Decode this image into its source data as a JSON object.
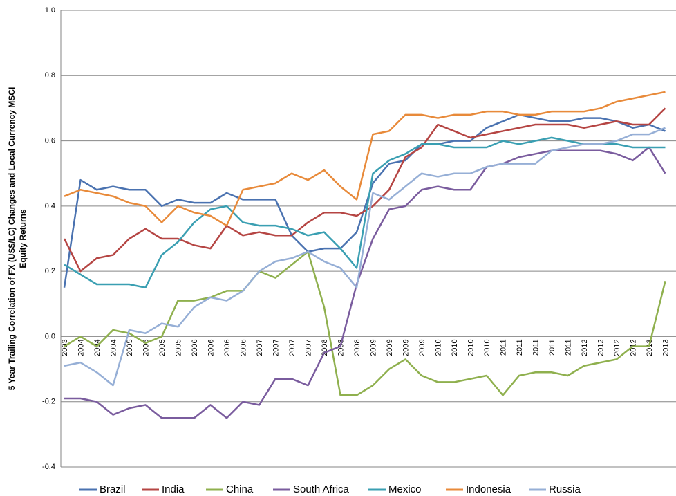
{
  "chart_data": {
    "type": "line",
    "ylabel": [
      "5 Year Trailing Correlation of FX (US$/LC) Changes and Local Currency MSCI",
      "Equity Returns"
    ],
    "categories": [
      "2003",
      "2004",
      "2004",
      "2004",
      "2005",
      "2005",
      "2005",
      "2005",
      "2006",
      "2006",
      "2006",
      "2006",
      "2007",
      "2007",
      "2007",
      "2007",
      "2008",
      "2008",
      "2008",
      "2009",
      "2009",
      "2009",
      "2009",
      "2010",
      "2010",
      "2010",
      "2010",
      "2011",
      "2011",
      "2011",
      "2011",
      "2011",
      "2012",
      "2012",
      "2012",
      "2012",
      "2013",
      "2013"
    ],
    "ylim": [
      -0.4,
      1
    ],
    "yticks": [
      {
        "value": 1,
        "label": "1.0"
      },
      0.8,
      0.6,
      0.4,
      0.2,
      {
        "value": 0,
        "label": "0.0"
      },
      -0.2,
      -0.4
    ],
    "grid": true,
    "legend": "bottom",
    "series": [
      {
        "name": "Brazil",
        "color": "#4a72b0",
        "values": [
          0.15,
          0.48,
          0.45,
          0.46,
          0.45,
          0.45,
          0.4,
          0.42,
          0.41,
          0.41,
          0.44,
          0.42,
          0.42,
          0.42,
          0.31,
          0.26,
          0.27,
          0.27,
          0.32,
          0.47,
          0.53,
          0.54,
          0.59,
          0.59,
          0.6,
          0.6,
          0.64,
          0.66,
          0.68,
          0.67,
          0.66,
          0.66,
          0.67,
          0.67,
          0.66,
          0.64,
          0.65,
          0.63
        ]
      },
      {
        "name": "India",
        "color": "#b54543",
        "values": [
          0.3,
          0.2,
          0.24,
          0.25,
          0.3,
          0.33,
          0.3,
          0.3,
          0.28,
          0.27,
          0.34,
          0.31,
          0.32,
          0.31,
          0.31,
          0.35,
          0.38,
          0.38,
          0.37,
          0.4,
          0.45,
          0.55,
          0.58,
          0.65,
          0.63,
          0.61,
          0.62,
          0.63,
          0.64,
          0.65,
          0.65,
          0.65,
          0.64,
          0.65,
          0.66,
          0.65,
          0.65,
          0.7
        ]
      },
      {
        "name": "China",
        "color": "#8fb04e",
        "values": [
          -0.03,
          0.0,
          -0.03,
          0.02,
          0.01,
          -0.02,
          0.0,
          0.11,
          0.11,
          0.12,
          0.14,
          0.14,
          0.2,
          0.18,
          0.22,
          0.26,
          0.09,
          -0.18,
          -0.18,
          -0.15,
          -0.1,
          -0.07,
          -0.12,
          -0.14,
          -0.14,
          -0.13,
          -0.12,
          -0.18,
          -0.12,
          -0.11,
          -0.11,
          -0.12,
          -0.09,
          -0.08,
          -0.07,
          -0.03,
          -0.03,
          0.17
        ]
      },
      {
        "name": "South Africa",
        "color": "#7a5c9e",
        "values": [
          -0.19,
          -0.19,
          -0.2,
          -0.24,
          -0.22,
          -0.21,
          -0.25,
          -0.25,
          -0.25,
          -0.21,
          -0.25,
          -0.2,
          -0.21,
          -0.13,
          -0.13,
          -0.15,
          -0.05,
          -0.03,
          0.16,
          0.3,
          0.39,
          0.4,
          0.45,
          0.46,
          0.45,
          0.45,
          0.52,
          0.53,
          0.55,
          0.56,
          0.57,
          0.57,
          0.57,
          0.57,
          0.56,
          0.54,
          0.58,
          0.5
        ]
      },
      {
        "name": "Mexico",
        "color": "#3a9fb2",
        "values": [
          0.22,
          0.19,
          0.16,
          0.16,
          0.16,
          0.15,
          0.25,
          0.29,
          0.35,
          0.39,
          0.4,
          0.35,
          0.34,
          0.34,
          0.33,
          0.31,
          0.32,
          0.27,
          0.21,
          0.5,
          0.54,
          0.56,
          0.59,
          0.59,
          0.58,
          0.58,
          0.58,
          0.6,
          0.59,
          0.6,
          0.61,
          0.6,
          0.59,
          0.59,
          0.59,
          0.58,
          0.58,
          0.58
        ]
      },
      {
        "name": "Indonesia",
        "color": "#e88a3a",
        "values": [
          0.43,
          0.45,
          0.44,
          0.43,
          0.41,
          0.4,
          0.35,
          0.4,
          0.38,
          0.37,
          0.34,
          0.45,
          0.46,
          0.47,
          0.5,
          0.48,
          0.51,
          0.46,
          0.42,
          0.62,
          0.63,
          0.68,
          0.68,
          0.67,
          0.68,
          0.68,
          0.69,
          0.69,
          0.68,
          0.68,
          0.69,
          0.69,
          0.69,
          0.7,
          0.72,
          0.73,
          0.74,
          0.75
        ]
      },
      {
        "name": "Russia",
        "color": "#96afd6",
        "values": [
          -0.09,
          -0.08,
          -0.11,
          -0.15,
          0.02,
          0.01,
          0.04,
          0.03,
          0.09,
          0.12,
          0.11,
          0.14,
          0.2,
          0.23,
          0.24,
          0.26,
          0.23,
          0.21,
          0.15,
          0.44,
          0.42,
          0.46,
          0.5,
          0.49,
          0.5,
          0.5,
          0.52,
          0.53,
          0.53,
          0.53,
          0.57,
          0.58,
          0.59,
          0.59,
          0.6,
          0.62,
          0.62,
          0.64
        ]
      }
    ]
  }
}
